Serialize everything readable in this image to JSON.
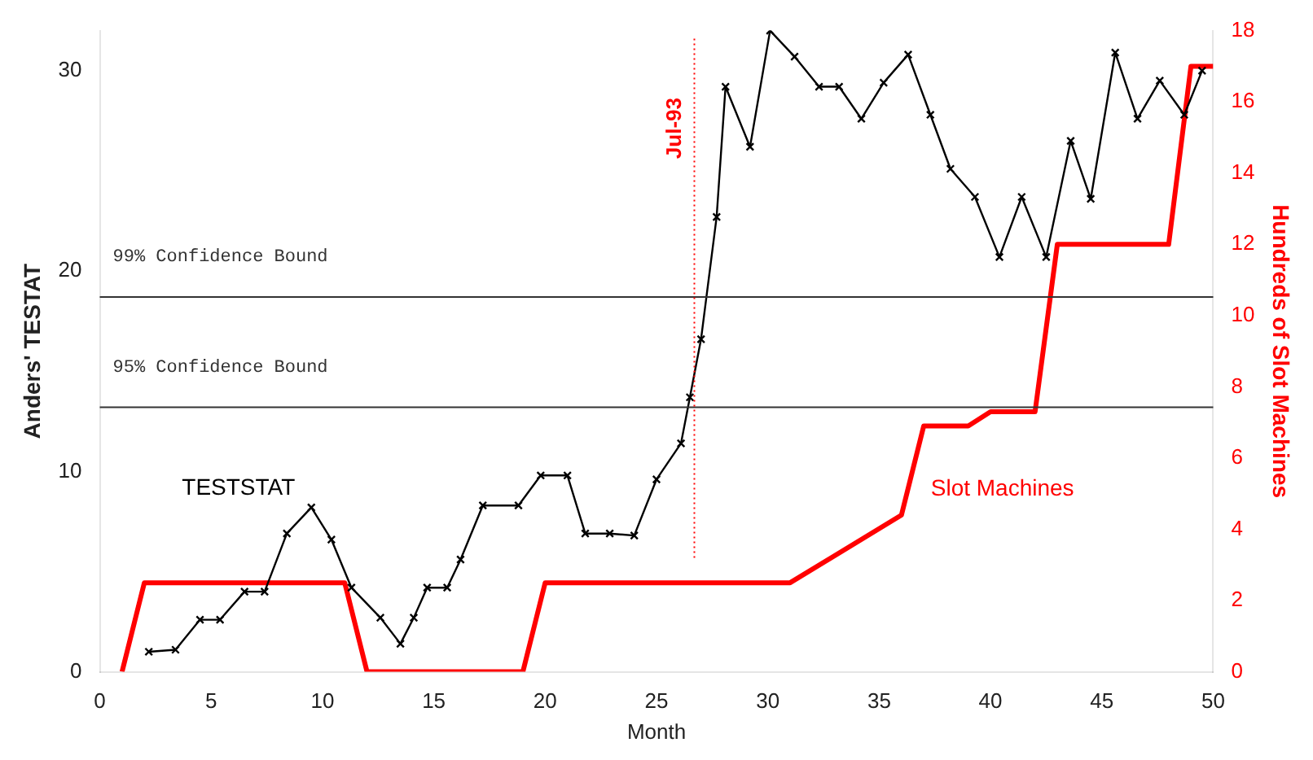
{
  "chart_data": {
    "type": "line",
    "xlabel": "Month",
    "ylabel": "Anders' TESTAT",
    "y2label": "Hundreds of Slot Machines",
    "xlim": [
      0,
      50
    ],
    "xticks": [
      0,
      5,
      10,
      15,
      20,
      25,
      30,
      35,
      40,
      45,
      50
    ],
    "ylim": [
      0,
      32
    ],
    "yticks": [
      0,
      10,
      20,
      30
    ],
    "y2lim": [
      0,
      18
    ],
    "y2ticks": [
      0,
      2,
      4,
      6,
      8,
      10,
      12,
      14,
      16,
      18
    ],
    "grid": false,
    "legend": false,
    "series": [
      {
        "name": "TESTSTAT",
        "color": "#000000",
        "marker": "cross",
        "x": [
          2.2,
          3.4,
          4.5,
          5.4,
          6.5,
          7.4,
          8.4,
          9.5,
          10.4,
          11.3,
          12.6,
          13.5,
          14.1,
          14.7,
          15.6,
          16.2,
          17.2,
          18.8,
          19.8,
          21.0,
          21.8,
          22.9,
          24.0,
          25.0,
          26.1,
          26.5,
          27.0,
          27.7,
          28.1,
          29.2,
          30.1,
          31.2,
          32.3,
          33.2,
          34.2,
          35.2,
          36.3,
          37.3,
          38.2,
          39.3,
          40.4,
          41.4,
          42.5,
          43.6,
          44.5,
          45.6,
          46.6,
          47.6,
          48.7,
          49.5
        ],
        "values": [
          1.0,
          1.1,
          2.6,
          2.6,
          4.0,
          4.0,
          6.9,
          8.2,
          6.6,
          4.2,
          2.7,
          1.4,
          2.7,
          4.2,
          4.2,
          5.6,
          8.3,
          8.3,
          9.8,
          9.8,
          6.9,
          6.9,
          6.8,
          9.6,
          11.4,
          13.7,
          16.6,
          22.7,
          29.2,
          26.2,
          32.0,
          30.7,
          29.2,
          29.2,
          27.6,
          29.4,
          30.8,
          27.8,
          25.1,
          23.7,
          20.7,
          23.7,
          20.7,
          26.5,
          23.6,
          30.9,
          27.6,
          29.5,
          27.8,
          30.0
        ]
      },
      {
        "name": "Slot Machines",
        "color": "#ff0000",
        "axis": "y2",
        "marker": "none",
        "x": [
          1,
          2,
          11,
          12,
          19,
          20,
          31,
          36,
          37,
          39,
          40,
          42,
          43,
          48,
          49,
          50
        ],
        "values": [
          0,
          2.5,
          2.5,
          0,
          0,
          2.5,
          2.5,
          4.4,
          6.9,
          6.9,
          7.3,
          7.3,
          12,
          12,
          17,
          17
        ]
      }
    ],
    "ref_lines": [
      {
        "axis": "y",
        "value": 18.7,
        "label": "99% Confidence Bound",
        "color": "#333333",
        "line_style": "solid"
      },
      {
        "axis": "y",
        "value": 13.2,
        "label": "95% Confidence Bound",
        "color": "#333333",
        "line_style": "solid"
      },
      {
        "axis": "x",
        "value": 26.7,
        "label": "Jul-93",
        "color": "#ff0000",
        "line_style": "dotted"
      }
    ]
  }
}
